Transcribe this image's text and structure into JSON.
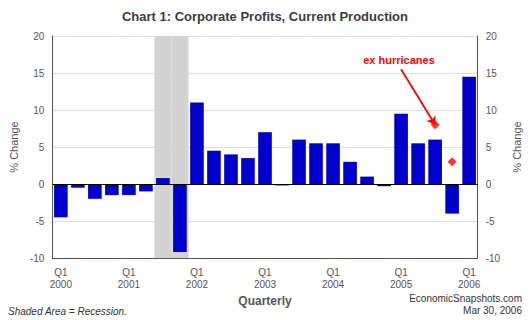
{
  "chart_data": {
    "type": "bar",
    "title": "Chart 1: Corporate Profits, Current Production",
    "x_label": "Quarterly",
    "y_label": "% Change",
    "y2_label": "% Change",
    "categories": [
      "Q1\n2000",
      null,
      null,
      null,
      "Q1\n2001",
      null,
      null,
      null,
      "Q1\n2002",
      null,
      null,
      null,
      "Q1\n2003",
      null,
      null,
      null,
      "Q1\n2004",
      null,
      null,
      null,
      "Q1\n2005",
      null,
      null,
      null,
      "Q1\n2006"
    ],
    "values": [
      -4.5,
      -0.5,
      -2.0,
      -1.5,
      -1.5,
      -1.0,
      0.8,
      -9.2,
      11.0,
      4.5,
      4.0,
      3.5,
      7.0,
      -0.2,
      6.0,
      5.5,
      5.5,
      3.0,
      1.0,
      -0.3,
      9.5,
      5.5,
      6.0,
      -4.0,
      14.5
    ],
    "color": "#0000CC",
    "ylim": [
      -10,
      20
    ],
    "yticks": [
      -10,
      -5,
      0,
      5,
      10,
      15,
      20
    ],
    "y2lim": [
      -10,
      20
    ],
    "y2ticks": [
      -10,
      -5,
      0,
      5,
      10,
      15,
      20
    ],
    "grid": true,
    "shaded": {
      "start": 6,
      "end": 8,
      "color": "#d3d3d3"
    },
    "markers": {
      "marker": "diamond",
      "color": "red",
      "points": [
        {
          "x": 22,
          "y": 8.0
        },
        {
          "x": 23,
          "y": 3.0
        }
      ]
    },
    "annotation": {
      "text": "ex hurricanes",
      "color": "red",
      "x": 22,
      "y": 8.0
    },
    "footnotes": [
      "Shaded Area = Recession.",
      "EconomicSnapshots.com\nMar 30, 2006"
    ]
  }
}
